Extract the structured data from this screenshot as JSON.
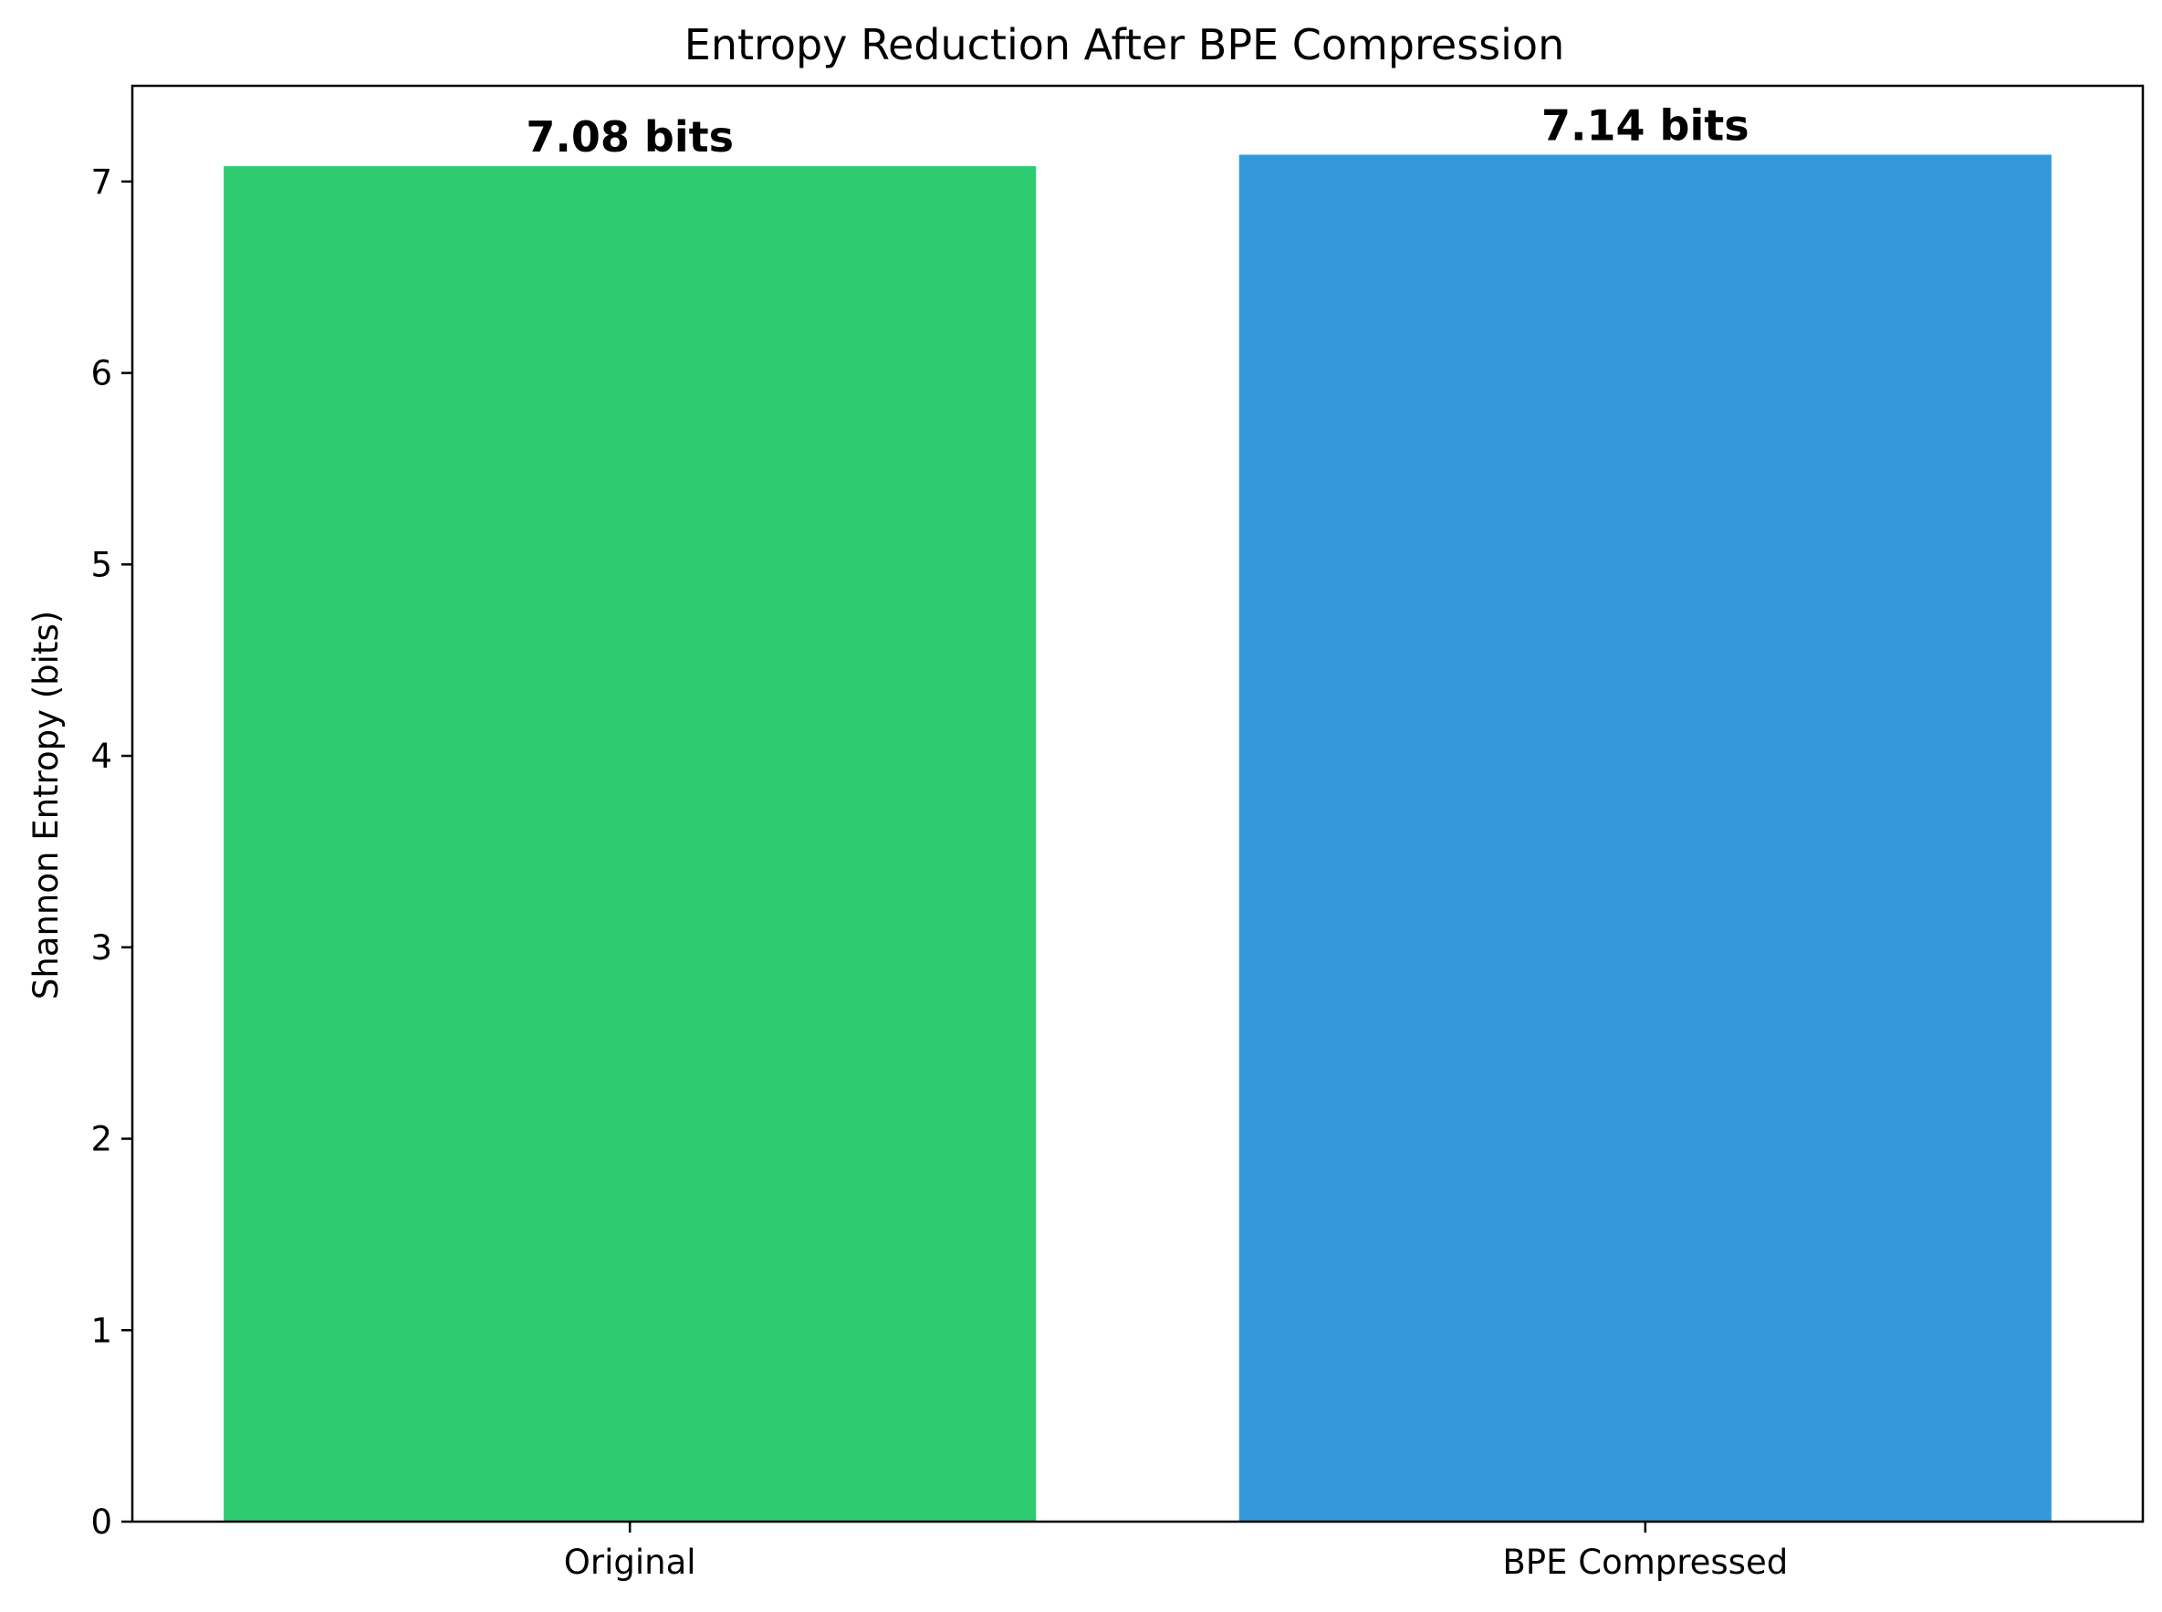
{
  "chart_data": {
    "type": "bar",
    "title": "Entropy Reduction After BPE Compression",
    "xlabel": "",
    "ylabel": "Shannon Entropy (bits)",
    "categories": [
      "Original",
      "BPE Compressed"
    ],
    "values": [
      7.08,
      7.14
    ],
    "data_labels": [
      "7.08 bits",
      "7.14 bits"
    ],
    "colors": [
      "#2ecc71",
      "#3498db"
    ],
    "ylim": [
      0,
      7.5
    ],
    "yticks": [
      0,
      1,
      2,
      3,
      4,
      5,
      6,
      7
    ],
    "grid": false,
    "legend": "none"
  }
}
